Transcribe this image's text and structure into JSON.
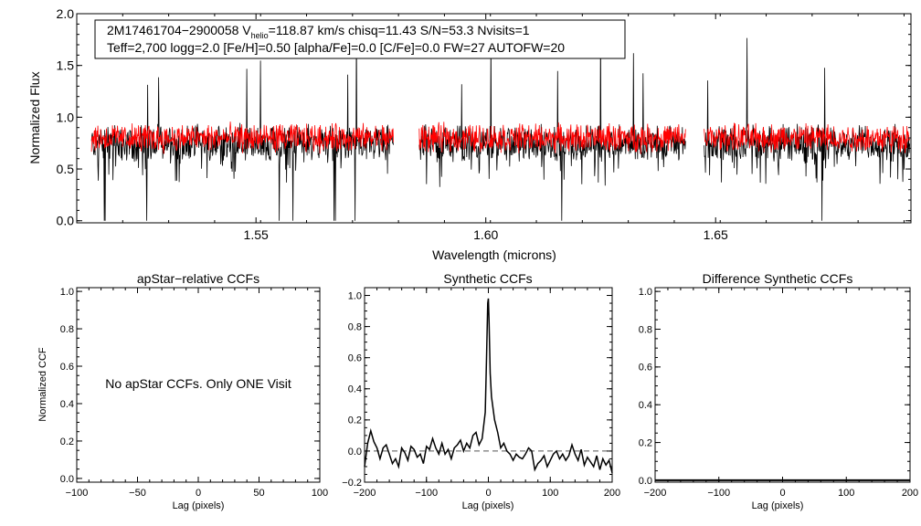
{
  "colors": {
    "observed": "#000000",
    "model": "#ff0000",
    "ccf": "#000000",
    "zero_line": "#555555"
  },
  "chart_data": [
    {
      "type": "line",
      "id": "spectrum",
      "xlabel": "Wavelength (microns)",
      "ylabel": "Normalized Flux",
      "xlim": [
        1.511,
        1.6925
      ],
      "ylim": [
        -0.02,
        2.0
      ],
      "xticks": [
        1.55,
        1.6,
        1.65
      ],
      "xtick_labels": [
        "1.55",
        "1.60",
        "1.65"
      ],
      "yticks": [
        0.0,
        0.5,
        1.0,
        1.5,
        2.0
      ],
      "ytick_labels": [
        "0.0",
        "0.5",
        "1.0",
        "1.5",
        "2.0"
      ],
      "chip_ranges": [
        [
          1.5142,
          1.58
        ],
        [
          1.5855,
          1.6435
        ],
        [
          1.6475,
          1.6955
        ]
      ],
      "series": [
        {
          "name": "observed spectrum",
          "color": "#000000",
          "continuum": 0.75,
          "scatter": 0.14
        },
        {
          "name": "synthetic model",
          "color": "#ff0000",
          "continuum": 0.8,
          "scatter": 0.1
        }
      ],
      "annotation": {
        "line1_prefix": "2M17461704−2900058  V",
        "line1_sub": "helio",
        "line1_suffix": "=118.87 km/s  chisq=11.43  S/N=53.3  Nvisits=1",
        "line2": "Teff=2,700 logg=2.0 [Fe/H]=0.50 [alpha/Fe]=0.0 [C/Fe]=0.0 FW=27 AUTOFW=20"
      }
    },
    {
      "type": "line",
      "id": "apstar_ccf",
      "title": "apStar−relative CCFs",
      "xlabel": "Lag (pixels)",
      "ylabel": "Normalized CCF",
      "xlim": [
        -100,
        100
      ],
      "ylim": [
        -0.02,
        1.02
      ],
      "xticks": [
        -100,
        -50,
        0,
        50,
        100
      ],
      "xtick_labels": [
        "−100",
        "−50",
        "0",
        "50",
        "100"
      ],
      "yticks": [
        0.0,
        0.2,
        0.4,
        0.6,
        0.8,
        1.0
      ],
      "ytick_labels": [
        "0.0",
        "0.2",
        "0.4",
        "0.6",
        "0.8",
        "1.0"
      ],
      "message": "No apStar CCFs.  Only ONE Visit",
      "series": []
    },
    {
      "type": "line",
      "id": "synthetic_ccf",
      "title": "Synthetic CCFs",
      "xlabel": "Lag (pixels)",
      "xlim": [
        -200,
        200
      ],
      "ylim": [
        -0.2,
        1.05
      ],
      "xticks": [
        -200,
        -100,
        0,
        100,
        200
      ],
      "xtick_labels": [
        "−200",
        "−100",
        "0",
        "100",
        "200"
      ],
      "yticks": [
        -0.2,
        0.0,
        0.2,
        0.4,
        0.6,
        0.8,
        1.0
      ],
      "ytick_labels": [
        "−0.2",
        "0.0",
        "0.2",
        "0.4",
        "0.6",
        "0.8",
        "1.0"
      ],
      "series": [
        {
          "name": "synthetic CCF",
          "x": [
            -200,
            -195,
            -190,
            -185,
            -180,
            -175,
            -170,
            -165,
            -160,
            -155,
            -150,
            -145,
            -140,
            -135,
            -130,
            -125,
            -120,
            -115,
            -110,
            -105,
            -100,
            -95,
            -90,
            -85,
            -80,
            -75,
            -70,
            -65,
            -60,
            -55,
            -50,
            -45,
            -40,
            -35,
            -30,
            -25,
            -20,
            -15,
            -10,
            -5,
            -3,
            -1,
            0,
            1,
            3,
            5,
            10,
            15,
            20,
            25,
            30,
            35,
            40,
            45,
            50,
            55,
            60,
            65,
            70,
            75,
            80,
            85,
            90,
            95,
            100,
            105,
            110,
            115,
            120,
            125,
            130,
            135,
            140,
            145,
            150,
            155,
            160,
            165,
            170,
            175,
            180,
            185,
            190,
            195,
            200
          ],
          "y": [
            -0.1,
            0.05,
            0.13,
            0.06,
            0.02,
            -0.05,
            0.02,
            0.04,
            -0.02,
            -0.08,
            -0.05,
            -0.1,
            0.02,
            -0.01,
            -0.06,
            0.03,
            0.01,
            -0.04,
            -0.02,
            -0.08,
            0.03,
            0.01,
            0.08,
            0.02,
            -0.02,
            0.05,
            -0.02,
            0.01,
            -0.05,
            0.02,
            0.04,
            0.07,
            0.0,
            0.05,
            0.02,
            0.1,
            0.12,
            0.04,
            0.08,
            0.25,
            0.6,
            0.95,
            0.98,
            0.85,
            0.5,
            0.35,
            0.2,
            0.12,
            0.02,
            0.05,
            0.0,
            -0.02,
            -0.06,
            -0.02,
            -0.04,
            -0.05,
            -0.02,
            0.02,
            0.0,
            -0.12,
            -0.08,
            -0.06,
            -0.03,
            -0.1,
            -0.06,
            -0.02,
            0.0,
            -0.05,
            -0.02,
            -0.06,
            -0.03,
            0.04,
            -0.02,
            -0.06,
            0.01,
            -0.09,
            -0.04,
            -0.07,
            -0.1,
            -0.03,
            -0.12,
            -0.05,
            -0.09,
            -0.06,
            -0.14
          ]
        }
      ],
      "reference_line": {
        "y": 0.0,
        "style": "dashed"
      }
    },
    {
      "type": "line",
      "id": "difference_ccf",
      "title": "Difference Synthetic CCFs",
      "xlabel": "Lag (pixels)",
      "xlim": [
        -200,
        200
      ],
      "ylim": [
        -0.01,
        1.02
      ],
      "xticks": [
        -200,
        -100,
        0,
        100,
        200
      ],
      "xtick_labels": [
        "−200",
        "−100",
        "0",
        "100",
        "200"
      ],
      "yticks": [
        0.0,
        0.2,
        0.4,
        0.6,
        0.8,
        1.0
      ],
      "ytick_labels": [
        "0.0",
        "0.2",
        "0.4",
        "0.6",
        "0.8",
        "1.0"
      ],
      "series": [
        {
          "name": "difference CCF",
          "x": [
            -200,
            200
          ],
          "y": [
            0.0,
            0.0
          ]
        }
      ]
    }
  ]
}
